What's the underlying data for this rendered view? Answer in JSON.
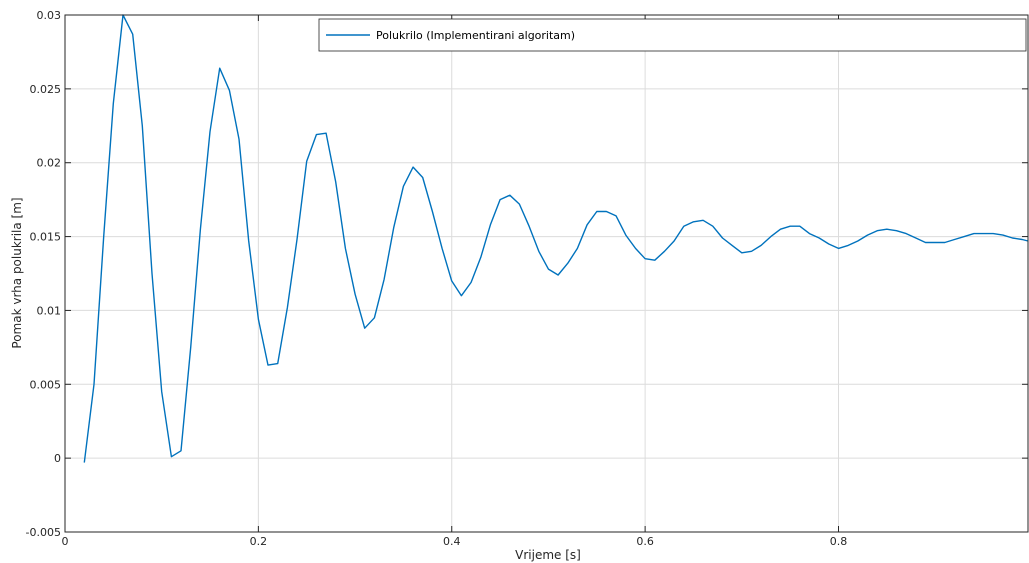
{
  "chart_data": {
    "type": "line",
    "title": "",
    "xlabel": "Vrijeme [s]",
    "ylabel": "Pomak vrha polukrila [m]",
    "xlim": [
      0,
      0.996
    ],
    "ylim": [
      -0.005,
      0.03
    ],
    "grid": true,
    "legend_position": "top-right",
    "x_ticks": [
      {
        "value": 0,
        "label": "0"
      },
      {
        "value": 0.2,
        "label": "0.2"
      },
      {
        "value": 0.4,
        "label": "0.4"
      },
      {
        "value": 0.6,
        "label": "0.6"
      },
      {
        "value": 0.8,
        "label": "0.8"
      }
    ],
    "y_ticks": [
      {
        "value": -0.005,
        "label": "-0.005"
      },
      {
        "value": 0,
        "label": "0"
      },
      {
        "value": 0.005,
        "label": "0.005"
      },
      {
        "value": 0.01,
        "label": "0.01"
      },
      {
        "value": 0.015,
        "label": "0.015"
      },
      {
        "value": 0.02,
        "label": "0.02"
      },
      {
        "value": 0.025,
        "label": "0.025"
      },
      {
        "value": 0.03,
        "label": "0.03"
      }
    ],
    "series": [
      {
        "name": "Polukrilo (Implementirani algoritam)",
        "color": "#0072bd",
        "x": [
          0.02,
          0.03,
          0.04,
          0.05,
          0.06,
          0.07,
          0.08,
          0.09,
          0.1,
          0.11,
          0.12,
          0.13,
          0.14,
          0.15,
          0.16,
          0.17,
          0.18,
          0.19,
          0.2,
          0.21,
          0.22,
          0.23,
          0.24,
          0.25,
          0.26,
          0.27,
          0.28,
          0.29,
          0.3,
          0.31,
          0.32,
          0.33,
          0.34,
          0.35,
          0.36,
          0.37,
          0.38,
          0.39,
          0.4,
          0.41,
          0.42,
          0.43,
          0.44,
          0.45,
          0.46,
          0.47,
          0.48,
          0.49,
          0.5,
          0.51,
          0.52,
          0.53,
          0.54,
          0.55,
          0.56,
          0.57,
          0.58,
          0.59,
          0.6,
          0.61,
          0.62,
          0.63,
          0.64,
          0.65,
          0.66,
          0.67,
          0.68,
          0.69,
          0.7,
          0.71,
          0.72,
          0.73,
          0.74,
          0.75,
          0.76,
          0.77,
          0.78,
          0.79,
          0.8,
          0.81,
          0.82,
          0.83,
          0.84,
          0.85,
          0.86,
          0.87,
          0.88,
          0.89,
          0.9,
          0.91,
          0.92,
          0.93,
          0.94,
          0.95,
          0.96,
          0.97,
          0.98,
          0.99,
          0.996
        ],
        "y": [
          -0.0003,
          0.005,
          0.015,
          0.024,
          0.03,
          0.0287,
          0.0225,
          0.0125,
          0.0045,
          0.0001,
          0.0005,
          0.0075,
          0.0155,
          0.0221,
          0.0264,
          0.0249,
          0.0216,
          0.0147,
          0.0094,
          0.0063,
          0.0064,
          0.0102,
          0.0148,
          0.0201,
          0.0219,
          0.022,
          0.0187,
          0.0142,
          0.0111,
          0.0088,
          0.0095,
          0.0121,
          0.0156,
          0.0184,
          0.0197,
          0.019,
          0.0167,
          0.0142,
          0.012,
          0.011,
          0.0119,
          0.0136,
          0.0158,
          0.0175,
          0.0178,
          0.0172,
          0.0157,
          0.014,
          0.0128,
          0.0124,
          0.0132,
          0.0142,
          0.0158,
          0.0167,
          0.0167,
          0.0164,
          0.0151,
          0.0142,
          0.0135,
          0.0134,
          0.014,
          0.0147,
          0.0157,
          0.016,
          0.0161,
          0.0157,
          0.0149,
          0.0144,
          0.0139,
          0.014,
          0.0144,
          0.015,
          0.0155,
          0.0157,
          0.0157,
          0.0152,
          0.0149,
          0.0145,
          0.0142,
          0.0144,
          0.0147,
          0.0151,
          0.0154,
          0.0155,
          0.0154,
          0.0152,
          0.0149,
          0.0146,
          0.0146,
          0.0146,
          0.0148,
          0.015,
          0.0152,
          0.0152,
          0.0152,
          0.0151,
          0.0149,
          0.0148,
          0.0147
        ]
      }
    ]
  }
}
